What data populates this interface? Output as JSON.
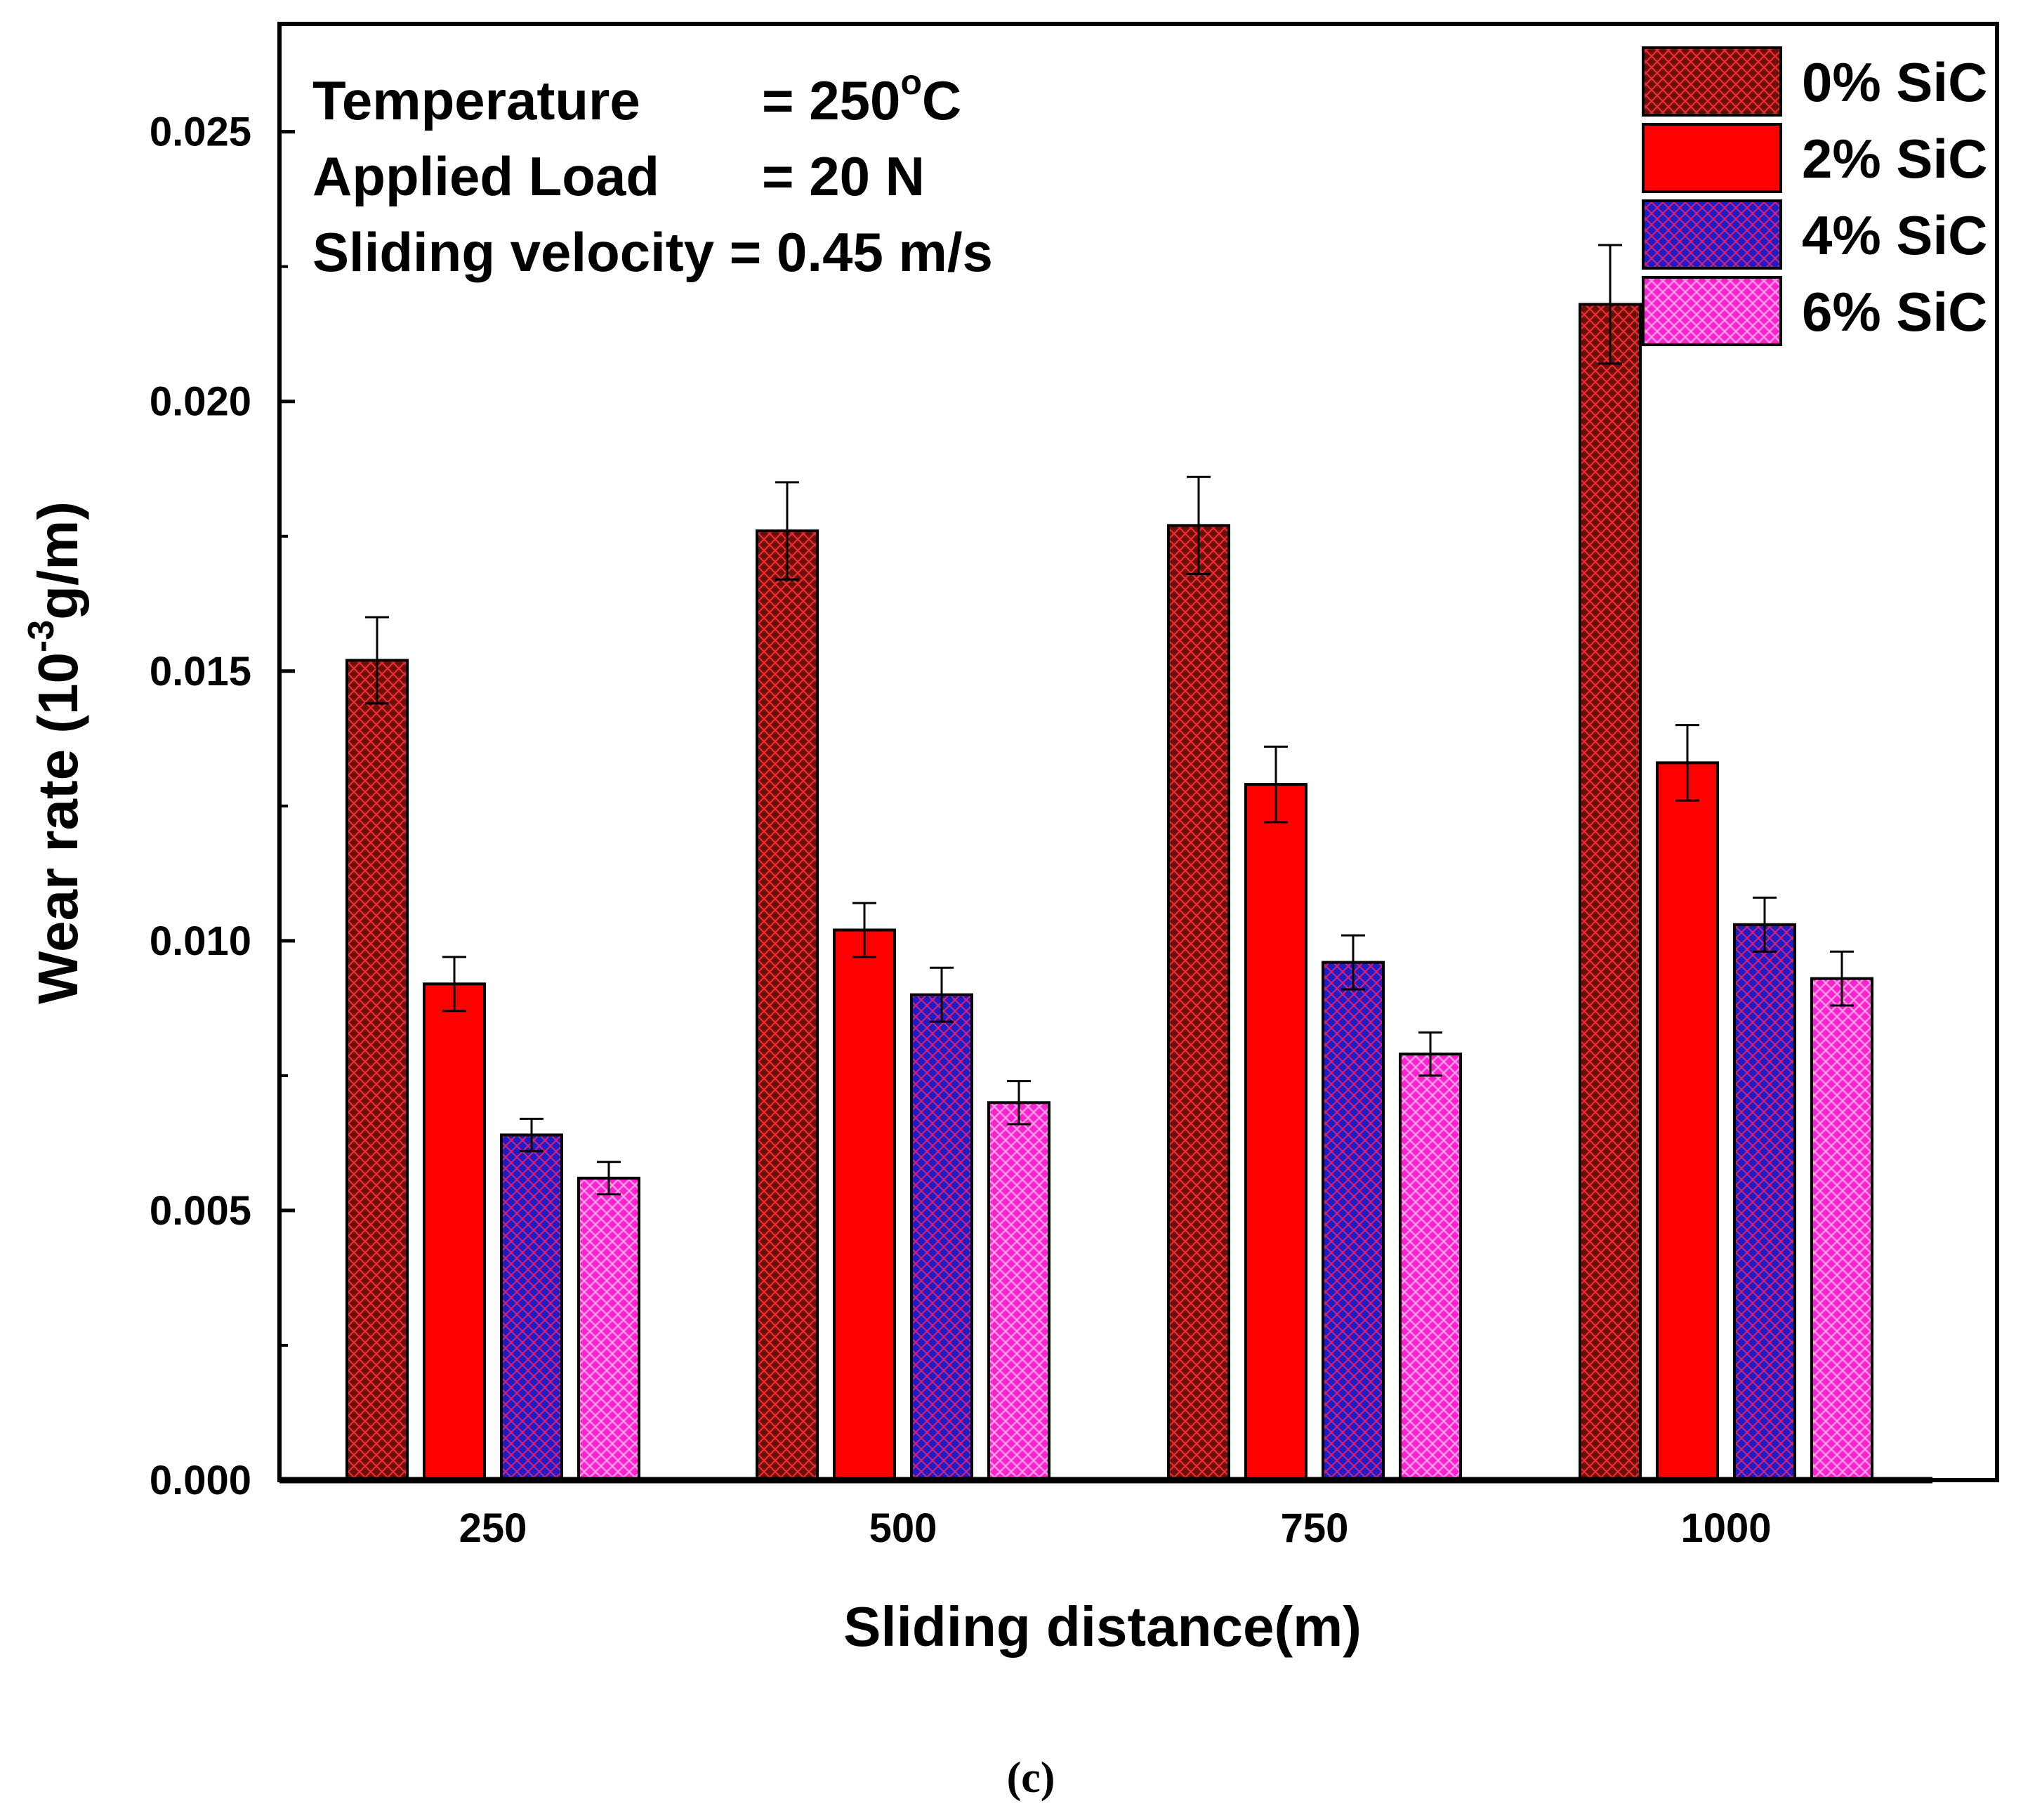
{
  "chart_data": {
    "type": "bar",
    "title": "",
    "xlabel": "Sliding distance(m)",
    "ylabel": {
      "main": "Wear rate (10",
      "exponent": "-3",
      "unit": "g/m)"
    },
    "ylim": [
      0,
      0.027
    ],
    "yticks": [
      "0.000",
      "0.005",
      "0.010",
      "0.015",
      "0.020",
      "0.025"
    ],
    "ytick_values": [
      0,
      0.005,
      0.01,
      0.015,
      0.02,
      0.025
    ],
    "categories": [
      "250",
      "500",
      "750",
      "1000"
    ],
    "series": [
      {
        "name": "0% SiC",
        "color": "#8b1a1a",
        "hatch": "#e01010",
        "values": [
          0.0152,
          0.0176,
          0.0177,
          0.0218
        ],
        "errors": [
          0.0008,
          0.0009,
          0.0009,
          0.0011
        ]
      },
      {
        "name": "2% SiC",
        "color": "#ff0000",
        "hatch": "",
        "values": [
          0.0092,
          0.0102,
          0.0129,
          0.0133
        ],
        "errors": [
          0.0005,
          0.0005,
          0.0007,
          0.0007
        ]
      },
      {
        "name": "4% SiC",
        "color": "#1a1acc",
        "hatch": "#e01070",
        "values": [
          0.0064,
          0.009,
          0.0096,
          0.0103
        ],
        "errors": [
          0.0003,
          0.0005,
          0.0005,
          0.0005
        ]
      },
      {
        "name": "6% SiC",
        "color": "#ff00cc",
        "hatch": "#ff70e0",
        "values": [
          0.0056,
          0.007,
          0.0079,
          0.0093
        ],
        "errors": [
          0.0003,
          0.0004,
          0.0004,
          0.0005
        ]
      }
    ],
    "legend_position": "top-right",
    "annotations": {
      "temperature_label": "Temperature",
      "temperature_value": "= 250",
      "temperature_degree": "o",
      "temperature_unit": "C",
      "load_label": "Applied Load",
      "load_value": "= 20 N",
      "velocity_text": "Sliding velocity = 0.45 m/s"
    }
  },
  "caption": "(c)"
}
